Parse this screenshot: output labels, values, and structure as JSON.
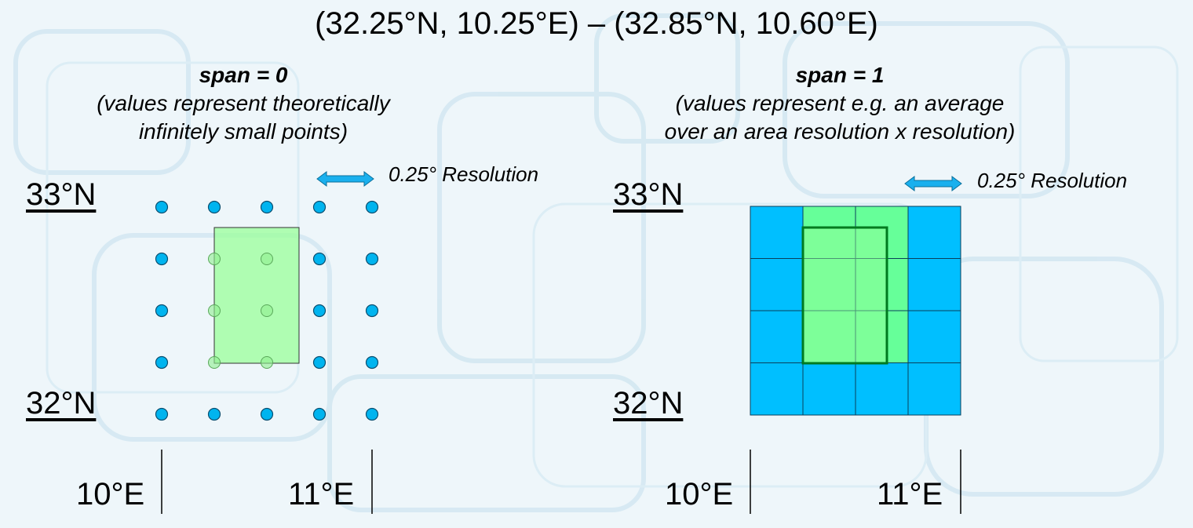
{
  "title": "(32.25°N, 10.25°E) – (32.85°N, 10.60°E)",
  "left_panel": {
    "heading": "span = 0",
    "line1": "(values represent theoretically",
    "line2": "infinitely small points)",
    "resolution_label": "0.25° Resolution",
    "lat_top": "33°N",
    "lat_bottom": "32°N",
    "lon_left": "10°E",
    "lon_right": "11°E"
  },
  "right_panel": {
    "heading": "span = 1",
    "line1": "(values represent e.g. an average",
    "line2": "over an area resolution x resolution)",
    "resolution_label": "0.25° Resolution",
    "lat_top": "33°N",
    "lat_bottom": "32°N",
    "lon_left": "10°E",
    "lon_right": "11°E"
  },
  "colors": {
    "grid_point": "#00b4ef",
    "grid_cell": "#00bfff",
    "selected_cell": "#66ff99",
    "selection_fill": "#99ff99",
    "selection_border": "#007a1f",
    "arrow": "#1ab0ee"
  }
}
